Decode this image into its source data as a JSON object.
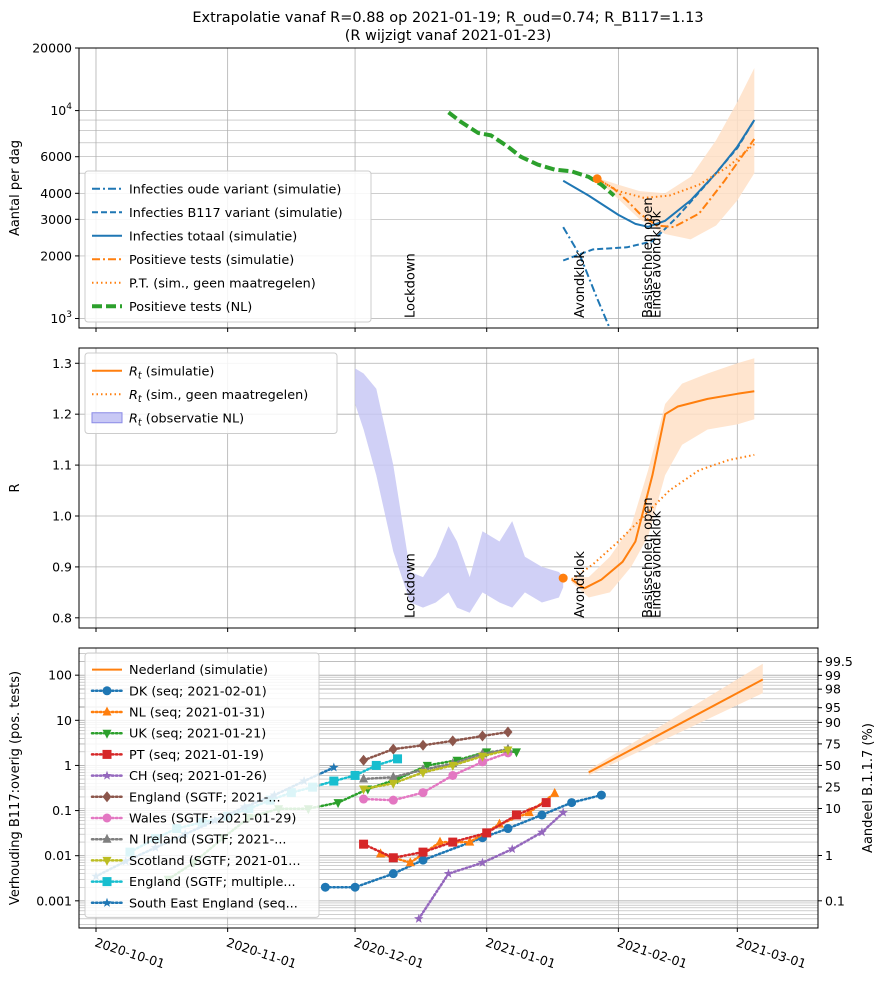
{
  "title_line1": "Extrapolatie vanaf R=0.88 op 2021-01-19; R_oud=0.74;  R_B117=1.13",
  "title_line2": "(R wijzigt vanaf 2021-01-23)",
  "colors": {
    "blue": "#1f77b4",
    "orange": "#ff7f0e",
    "green": "#2ca02c",
    "red": "#d62728",
    "purple": "#9467bd",
    "brown": "#8c564b",
    "pink": "#e377c2",
    "gray": "#7f7f7f",
    "olive": "#bcbd22",
    "cyan": "#17becf",
    "band_orange": "#ffe0c7",
    "band_blue": "#c8c8f5"
  },
  "x_axis": {
    "type": "date",
    "range": [
      "2020-09-27",
      "2021-03-20"
    ],
    "ticks": [
      "2020-10-01",
      "2020-11-01",
      "2020-12-01",
      "2021-01-01",
      "2021-02-01",
      "2021-03-01"
    ]
  },
  "chart_data": [
    {
      "type": "line",
      "ylabel": "Aantal per dag",
      "yscale": "log",
      "ylim": [
        900,
        20000
      ],
      "yticks": [
        {
          "v": 1000,
          "label": "10^3"
        },
        {
          "v": 2000,
          "label": "2000"
        },
        {
          "v": 3000,
          "label": "3000"
        },
        {
          "v": 4000,
          "label": "4000"
        },
        {
          "v": 6000,
          "label": "6000"
        },
        {
          "v": 10000,
          "label": "10^4"
        },
        {
          "v": 20000,
          "label": "20000"
        }
      ],
      "grid": true,
      "legend_position": "lower-left",
      "annotations": [
        {
          "text": "Lockdown",
          "x": "2020-12-14"
        },
        {
          "text": "Avondklok",
          "x": "2021-01-23"
        },
        {
          "text": "Basisscholen open",
          "x": "2021-02-08"
        },
        {
          "text": "Einde avondklok",
          "x": "2021-02-10"
        }
      ],
      "series": [
        {
          "name": "Infecties oude variant (simulatie)",
          "style": "dashdot",
          "color": "#1f77b4",
          "x": [
            "2021-01-19",
            "2021-01-23",
            "2021-01-27",
            "2021-01-31"
          ],
          "y": [
            2750,
            2000,
            1250,
            800
          ]
        },
        {
          "name": "Infecties B117 variant (simulatie)",
          "style": "dashed",
          "color": "#1f77b4",
          "x": [
            "2021-01-19",
            "2021-01-26",
            "2021-02-03",
            "2021-02-09",
            "2021-02-15",
            "2021-02-22",
            "2021-03-01",
            "2021-03-05"
          ],
          "y": [
            1900,
            2150,
            2200,
            2350,
            3100,
            4500,
            6600,
            9000
          ]
        },
        {
          "name": "Infecties totaal (simulatie)",
          "style": "solid",
          "color": "#1f77b4",
          "x": [
            "2021-01-19",
            "2021-01-25",
            "2021-02-01",
            "2021-02-05",
            "2021-02-08",
            "2021-02-12",
            "2021-02-18",
            "2021-02-24",
            "2021-03-01",
            "2021-03-05"
          ],
          "y": [
            4600,
            3900,
            3150,
            2850,
            2760,
            2950,
            3700,
            5000,
            6700,
            9000
          ]
        },
        {
          "name": "Positieve tests (simulatie)",
          "style": "dashdot",
          "color": "#ff7f0e",
          "x": [
            "2021-01-27",
            "2021-01-31",
            "2021-02-03",
            "2021-02-06",
            "2021-02-10",
            "2021-02-14",
            "2021-02-20",
            "2021-02-26",
            "2021-03-05"
          ],
          "y": [
            4700,
            4200,
            3700,
            3200,
            2800,
            2750,
            3200,
            4600,
            7300
          ]
        },
        {
          "name": "P.T. (sim., geen maatregelen)",
          "style": "dotted",
          "color": "#ff7f0e",
          "x": [
            "2021-01-27",
            "2021-02-01",
            "2021-02-07",
            "2021-02-13",
            "2021-02-20",
            "2021-02-27",
            "2021-03-05"
          ],
          "y": [
            4700,
            4100,
            3800,
            3900,
            4400,
            5400,
            6900
          ]
        },
        {
          "name": "Positieve tests (NL)",
          "style": "dashed-thick",
          "color": "#2ca02c",
          "x": [
            "2020-12-23",
            "2020-12-26",
            "2020-12-30",
            "2021-01-02",
            "2021-01-06",
            "2021-01-09",
            "2021-01-13",
            "2021-01-17",
            "2021-01-21",
            "2021-01-25",
            "2021-01-28",
            "2021-01-31"
          ],
          "y": [
            9800,
            8800,
            7800,
            7600,
            6700,
            6000,
            5500,
            5200,
            5100,
            4800,
            4400,
            3900
          ]
        }
      ],
      "bands": [
        {
          "color": "#ffe0c7",
          "x": [
            "2021-01-27",
            "2021-02-01",
            "2021-02-06",
            "2021-02-12",
            "2021-02-18",
            "2021-02-24",
            "2021-03-01",
            "2021-03-05"
          ],
          "lo": [
            4650,
            3750,
            3000,
            2550,
            2400,
            2800,
            3700,
            5000
          ],
          "hi": [
            4750,
            4400,
            4100,
            4000,
            4800,
            7200,
            11000,
            16000
          ]
        }
      ],
      "markers": [
        {
          "x": "2021-01-27",
          "y": 4700,
          "color": "#ff7f0e"
        }
      ]
    },
    {
      "type": "line",
      "ylabel": "R",
      "ylim": [
        0.78,
        1.33
      ],
      "yticks": [
        0.8,
        0.9,
        1.0,
        1.1,
        1.2,
        1.3
      ],
      "grid": true,
      "legend_position": "upper-left",
      "annotations": [
        {
          "text": "Lockdown",
          "x": "2020-12-14"
        },
        {
          "text": "Avondklok",
          "x": "2021-01-23"
        },
        {
          "text": "Basisscholen open",
          "x": "2021-02-08"
        },
        {
          "text": "Einde avondklok",
          "x": "2021-02-10"
        }
      ],
      "series": [
        {
          "name": "$R_t$ (simulatie)",
          "style": "solid",
          "color": "#ff7f0e",
          "x": [
            "2021-01-21",
            "2021-01-24",
            "2021-01-28",
            "2021-02-02",
            "2021-02-05",
            "2021-02-09",
            "2021-02-12",
            "2021-02-15",
            "2021-02-22",
            "2021-03-01",
            "2021-03-05"
          ],
          "y": [
            0.875,
            0.858,
            0.875,
            0.91,
            0.95,
            1.08,
            1.2,
            1.215,
            1.23,
            1.24,
            1.245
          ]
        },
        {
          "name": "$R_t$ (sim., geen maatregelen)",
          "style": "dotted",
          "color": "#ff7f0e",
          "x": [
            "2021-01-21",
            "2021-01-26",
            "2021-02-01",
            "2021-02-07",
            "2021-02-13",
            "2021-02-20",
            "2021-02-27",
            "2021-03-05"
          ],
          "y": [
            0.875,
            0.905,
            0.95,
            1.0,
            1.05,
            1.09,
            1.11,
            1.12
          ]
        }
      ],
      "bands": [
        {
          "name": "$R_t$ (observatie NL)",
          "color": "#c8c8f5",
          "x": [
            "2020-12-01",
            "2020-12-03",
            "2020-12-06",
            "2020-12-10",
            "2020-12-14",
            "2020-12-17",
            "2020-12-20",
            "2020-12-23",
            "2020-12-25",
            "2020-12-28",
            "2020-12-31",
            "2021-01-04",
            "2021-01-07",
            "2021-01-10",
            "2021-01-14",
            "2021-01-18",
            "2021-01-19"
          ],
          "lo": [
            1.22,
            1.17,
            1.08,
            0.93,
            0.83,
            0.82,
            0.83,
            0.85,
            0.82,
            0.81,
            0.85,
            0.83,
            0.82,
            0.85,
            0.83,
            0.84,
            0.86
          ],
          "hi": [
            1.29,
            1.28,
            1.25,
            1.1,
            0.89,
            0.88,
            0.92,
            0.98,
            0.95,
            0.88,
            0.97,
            0.95,
            0.99,
            0.92,
            0.9,
            0.89,
            0.88
          ]
        },
        {
          "color": "#ffe0c7",
          "x": [
            "2021-01-21",
            "2021-01-25",
            "2021-01-30",
            "2021-02-04",
            "2021-02-08",
            "2021-02-12",
            "2021-02-16",
            "2021-02-22",
            "2021-03-01",
            "2021-03-05"
          ],
          "lo": [
            0.87,
            0.84,
            0.85,
            0.9,
            0.96,
            1.08,
            1.14,
            1.17,
            1.18,
            1.19
          ],
          "hi": [
            0.88,
            0.88,
            0.92,
            0.98,
            1.09,
            1.22,
            1.26,
            1.28,
            1.3,
            1.31
          ]
        }
      ],
      "markers": [
        {
          "x": "2021-01-19",
          "y": 0.878,
          "color": "#ff7f0e"
        }
      ]
    },
    {
      "type": "line",
      "ylabel": "Verhouding B117:overig (pos. tests)",
      "y2label": "Aandeel B.1.1.7 (%)",
      "yscale": "log",
      "ylim": [
        0.00025,
        400
      ],
      "yticks": [
        {
          "v": 0.001,
          "label": "0.001"
        },
        {
          "v": 0.01,
          "label": "0.01"
        },
        {
          "v": 0.1,
          "label": "0.1"
        },
        {
          "v": 1,
          "label": "1"
        },
        {
          "v": 10,
          "label": "10"
        },
        {
          "v": 100,
          "label": "100"
        }
      ],
      "y2ticks": [
        "0.1",
        "1",
        "10",
        "25",
        "50",
        "75",
        "90",
        "95",
        "98",
        "99",
        "99.5"
      ],
      "grid": true,
      "legend_position": "upper-left",
      "series": [
        {
          "name": "Nederland (simulatie)",
          "style": "solid",
          "marker": "none",
          "color": "#ff7f0e",
          "x": [
            "2021-01-25",
            "2021-03-07"
          ],
          "y": [
            0.7,
            80
          ]
        },
        {
          "name": "DK (seq; 2021-02-01)",
          "marker": "circle",
          "color": "#1f77b4",
          "x": [
            "2020-11-24",
            "2020-12-01",
            "2020-12-10",
            "2020-12-17",
            "2020-12-31",
            "2021-01-06",
            "2021-01-14",
            "2021-01-21",
            "2021-01-28"
          ],
          "y": [
            0.002,
            0.002,
            0.004,
            0.008,
            0.025,
            0.04,
            0.08,
            0.15,
            0.22
          ]
        },
        {
          "name": "NL (seq; 2021-01-31)",
          "marker": "triangle-up",
          "color": "#ff7f0e",
          "x": [
            "2020-12-07",
            "2020-12-14",
            "2020-12-21",
            "2020-12-28",
            "2021-01-04",
            "2021-01-11",
            "2021-01-17"
          ],
          "y": [
            0.011,
            0.007,
            0.02,
            0.02,
            0.05,
            0.09,
            0.24
          ]
        },
        {
          "name": "UK (seq; 2021-01-21)",
          "marker": "triangle-down",
          "color": "#2ca02c",
          "x": [
            "2020-10-18",
            "2020-10-24",
            "2020-10-31",
            "2020-11-06",
            "2020-11-13",
            "2020-11-20",
            "2020-11-27",
            "2020-12-04",
            "2020-12-11",
            "2020-12-18",
            "2020-12-25",
            "2021-01-01",
            "2021-01-08"
          ],
          "y": [
            0.003,
            0.007,
            0.025,
            0.07,
            0.11,
            0.11,
            0.15,
            0.3,
            0.5,
            1.0,
            1.3,
            2.0,
            2.0
          ]
        },
        {
          "name": "PT (seq; 2021-01-19)",
          "marker": "square",
          "color": "#d62728",
          "x": [
            "2020-12-03",
            "2020-12-10",
            "2020-12-17",
            "2020-12-24",
            "2021-01-01",
            "2021-01-08",
            "2021-01-15"
          ],
          "y": [
            0.018,
            0.009,
            0.012,
            0.02,
            0.032,
            0.08,
            0.15
          ]
        },
        {
          "name": "CH (seq; 2021-01-26)",
          "marker": "star",
          "color": "#9467bd",
          "x": [
            "2020-12-16",
            "2020-12-23",
            "2020-12-31",
            "2021-01-07",
            "2021-01-14",
            "2021-01-19"
          ],
          "y": [
            0.0004,
            0.004,
            0.007,
            0.014,
            0.033,
            0.09
          ]
        },
        {
          "name": "England (SGTF; 2021-...",
          "marker": "diamond",
          "color": "#8c564b",
          "x": [
            "2020-12-03",
            "2020-12-10",
            "2020-12-17",
            "2020-12-24",
            "2020-12-31",
            "2021-01-06"
          ],
          "y": [
            1.3,
            2.3,
            2.8,
            3.5,
            4.5,
            5.5
          ]
        },
        {
          "name": "Wales (SGTF; 2021-01-29)",
          "marker": "circle",
          "color": "#e377c2",
          "x": [
            "2020-12-03",
            "2020-12-10",
            "2020-12-17",
            "2020-12-24",
            "2020-12-31",
            "2021-01-06"
          ],
          "y": [
            0.18,
            0.17,
            0.25,
            0.6,
            1.2,
            1.9
          ]
        },
        {
          "name": "N Ireland (SGTF; 2021-...",
          "marker": "triangle-up",
          "color": "#7f7f7f",
          "x": [
            "2020-12-03",
            "2020-12-10",
            "2020-12-17",
            "2020-12-24",
            "2020-12-31",
            "2021-01-06"
          ],
          "y": [
            0.5,
            0.55,
            0.8,
            1.1,
            1.8,
            2.3
          ]
        },
        {
          "name": "Scotland (SGTF; 2021-01...",
          "marker": "triangle-down",
          "color": "#bcbd22",
          "x": [
            "2020-12-03",
            "2020-12-10",
            "2020-12-17",
            "2020-12-24",
            "2020-12-31",
            "2021-01-06"
          ],
          "y": [
            0.3,
            0.4,
            0.7,
            1.0,
            1.6,
            2.2
          ]
        },
        {
          "name": "England (SGTF; multiple...",
          "marker": "square",
          "color": "#17becf",
          "x": [
            "2020-10-09",
            "2020-10-15",
            "2020-10-20",
            "2020-10-26",
            "2020-11-01",
            "2020-11-06",
            "2020-11-11",
            "2020-11-16",
            "2020-11-21",
            "2020-11-26",
            "2020-12-01",
            "2020-12-06",
            "2020-12-11"
          ],
          "y": [
            0.012,
            0.024,
            0.04,
            0.055,
            0.075,
            0.11,
            0.17,
            0.25,
            0.33,
            0.45,
            0.6,
            1.0,
            1.4
          ]
        },
        {
          "name": "South East England (seq...",
          "marker": "star",
          "color": "#1f77b4",
          "x": [
            "2020-10-01",
            "2020-10-08",
            "2020-10-15",
            "2020-10-22",
            "2020-10-29",
            "2020-11-05",
            "2020-11-12",
            "2020-11-19",
            "2020-11-26"
          ],
          "y": [
            0.0035,
            0.0075,
            0.015,
            0.03,
            0.06,
            0.12,
            0.22,
            0.45,
            0.9
          ]
        }
      ],
      "bands": [
        {
          "color": "#ffe0c7",
          "x": [
            "2021-01-25",
            "2021-03-07"
          ],
          "lo": [
            0.6,
            40
          ],
          "hi": [
            0.8,
            180
          ]
        }
      ]
    }
  ]
}
